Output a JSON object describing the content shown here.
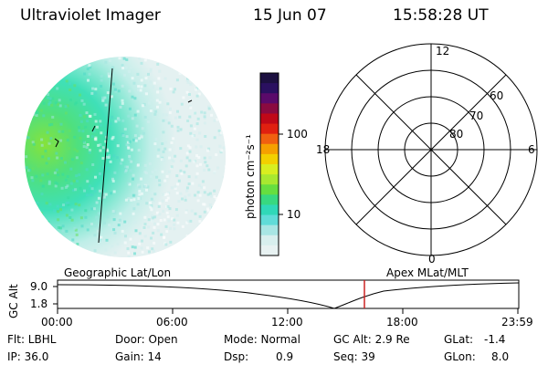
{
  "header": {
    "instrument": "Ultraviolet Imager",
    "date": "15 Jun 07",
    "time": "15:58:28 UT"
  },
  "colorbar": {
    "unit_label": "photon cm⁻²s⁻¹",
    "ticks": [
      "100",
      "10"
    ],
    "scale": "log"
  },
  "polar_plot": {
    "mlt_labels": [
      "12",
      "18",
      "6",
      "0"
    ],
    "mlat_labels": [
      "60",
      "70",
      "80"
    ]
  },
  "timeline": {
    "left_title": "Geographic Lat/Lon",
    "right_title": "Apex MLat/MLT",
    "y_label": "GC Alt",
    "y_ticks": [
      "9.0",
      "1.8"
    ],
    "x_ticks": [
      "00:00",
      "06:00",
      "12:00",
      "18:00",
      "23:59"
    ],
    "current_marker_time": "15:58:28",
    "marker_color": "#cc2222"
  },
  "status": {
    "flt": "Flt: LBHL",
    "ip": "IP: 36.0",
    "door": "Door: Open",
    "gain": "Gain: 14",
    "mode": "Mode: Normal",
    "dsp_label": "Dsp:",
    "dsp_value": "0.9",
    "gc_alt": "GC Alt: 2.9 Re",
    "seq": "Seq: 39",
    "glat_label": "GLat:",
    "glat_value": "-1.4",
    "glon_label": "GLon:",
    "glon_value": "8.0"
  }
}
